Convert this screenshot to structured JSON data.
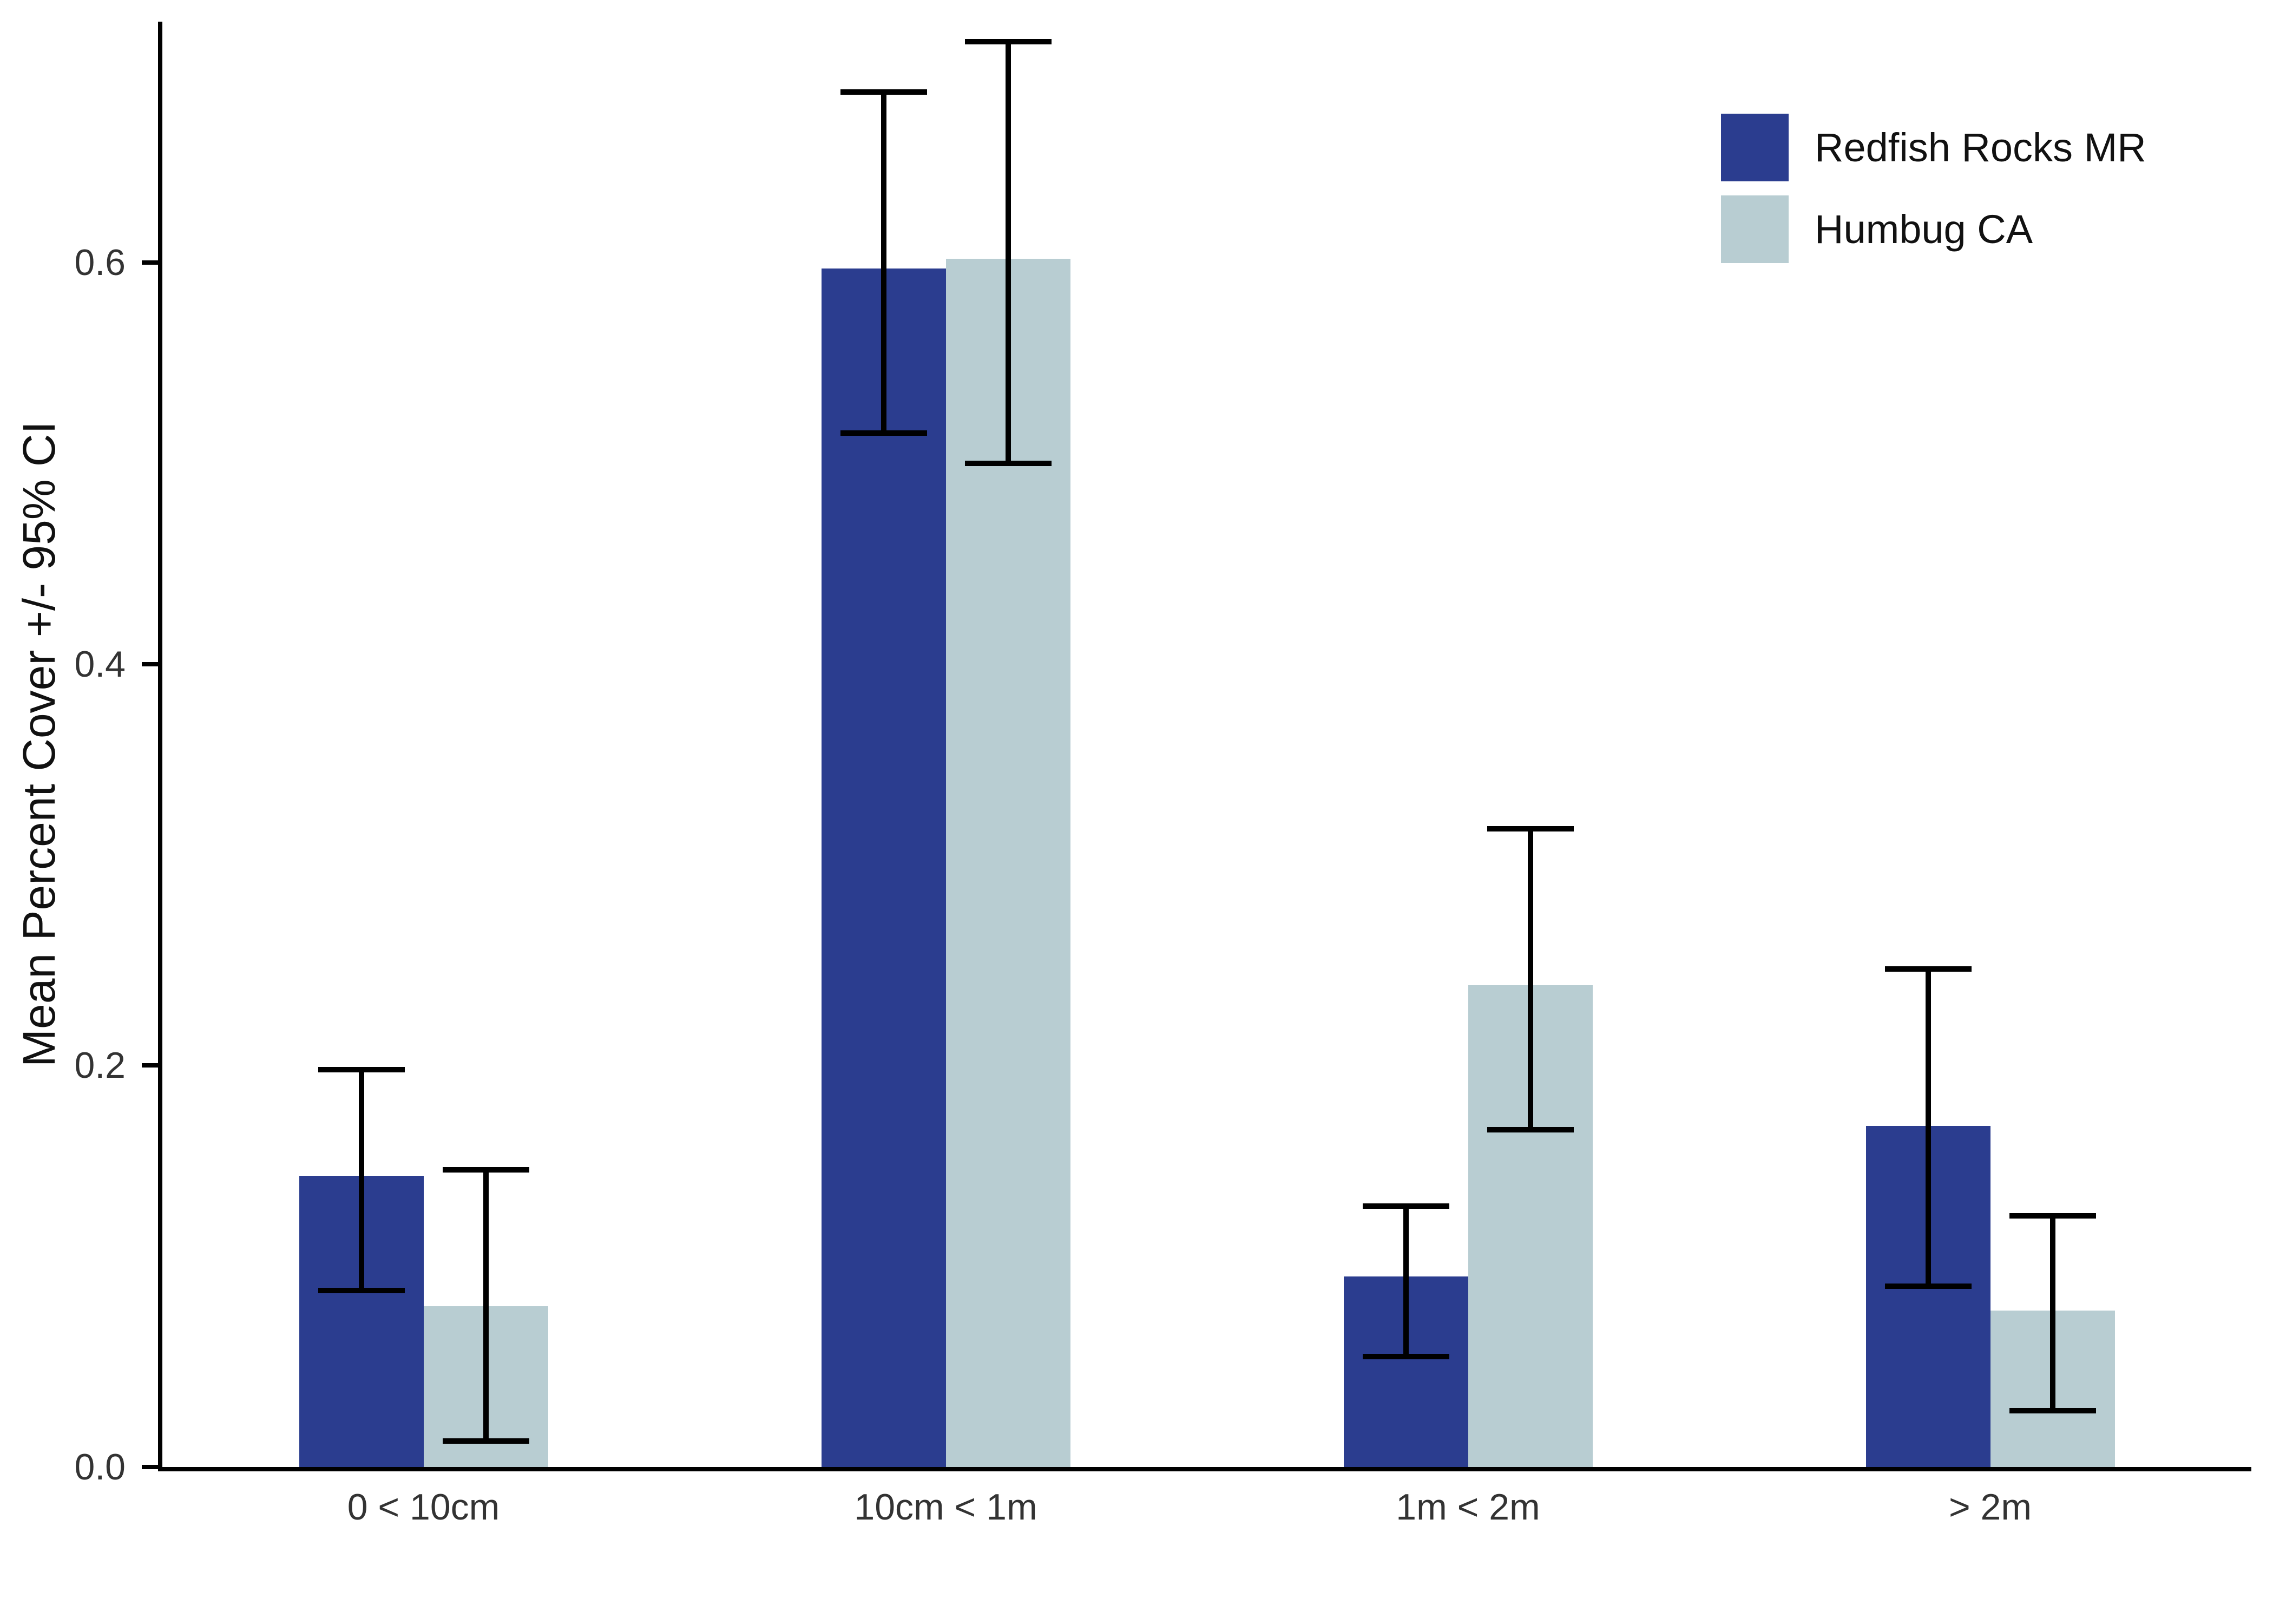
{
  "chart_data": {
    "type": "bar",
    "title": "",
    "xlabel": "",
    "ylabel": "Mean Percent Cover +/- 95% CI",
    "categories": [
      "0 < 10cm",
      "10cm < 1m",
      "1m < 2m",
      "> 2m"
    ],
    "series": [
      {
        "name": "Redfish Rocks MR",
        "color": "#2B3D8F",
        "values": [
          0.145,
          0.597,
          0.095,
          0.17
        ],
        "ci_low": [
          0.088,
          0.515,
          0.055,
          0.09
        ],
        "ci_high": [
          0.198,
          0.685,
          0.13,
          0.248
        ]
      },
      {
        "name": "Humbug CA",
        "color": "#B8CDD2",
        "values": [
          0.08,
          0.602,
          0.24,
          0.078
        ],
        "ci_low": [
          0.013,
          0.5,
          0.168,
          0.028
        ],
        "ci_high": [
          0.148,
          0.71,
          0.318,
          0.125
        ]
      }
    ],
    "yticks": [
      "0.0",
      "0.2",
      "0.4",
      "0.6"
    ],
    "ylim": [
      0,
      0.72
    ],
    "grid": false,
    "legend_position": "top-right",
    "errorbar_color": "#000000",
    "axis_color": "#000000",
    "background_color": "#ffffff"
  }
}
